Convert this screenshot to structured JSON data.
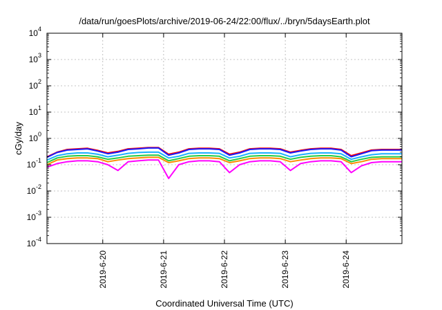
{
  "chart_data": {
    "type": "line",
    "title": "/data/run/goesPlots/archive/2019-06-24/22:00/flux/../bryn/5daysEarth.plot",
    "xlabel": "Coordinated Universal Time (UTC)",
    "ylabel": "cGy/day",
    "x_range": [
      "2019-06-19T02:00",
      "2019-06-24T22:00"
    ],
    "x_ticks": [
      "2019-6-20",
      "2019-6-21",
      "2019-6-22",
      "2019-6-23",
      "2019-6-24"
    ],
    "y_scale": "log",
    "ylim": [
      0.0001,
      10000
    ],
    "y_ticks": [
      {
        "base": "10",
        "exp": "-4"
      },
      {
        "base": "10",
        "exp": "-3"
      },
      {
        "base": "10",
        "exp": "-2"
      },
      {
        "base": "10",
        "exp": "-1"
      },
      {
        "base": "10",
        "exp": "0"
      },
      {
        "base": "10",
        "exp": "1"
      },
      {
        "base": "10",
        "exp": "2"
      },
      {
        "base": "10",
        "exp": "3"
      },
      {
        "base": "10",
        "exp": "4"
      }
    ],
    "grid": true,
    "x": [
      "2019-06-19T02:00",
      "2019-06-19T06:00",
      "2019-06-19T10:00",
      "2019-06-19T14:00",
      "2019-06-19T18:00",
      "2019-06-19T22:00",
      "2019-06-20T02:00",
      "2019-06-20T06:00",
      "2019-06-20T10:00",
      "2019-06-20T14:00",
      "2019-06-20T18:00",
      "2019-06-20T22:00",
      "2019-06-21T02:00",
      "2019-06-21T06:00",
      "2019-06-21T10:00",
      "2019-06-21T14:00",
      "2019-06-21T18:00",
      "2019-06-21T22:00",
      "2019-06-22T02:00",
      "2019-06-22T06:00",
      "2019-06-22T10:00",
      "2019-06-22T14:00",
      "2019-06-22T18:00",
      "2019-06-22T22:00",
      "2019-06-23T02:00",
      "2019-06-23T06:00",
      "2019-06-23T10:00",
      "2019-06-23T14:00",
      "2019-06-23T18:00",
      "2019-06-23T22:00",
      "2019-06-24T02:00",
      "2019-06-24T06:00",
      "2019-06-24T10:00",
      "2019-06-24T14:00",
      "2019-06-24T18:00",
      "2019-06-24T22:00"
    ],
    "series": [
      {
        "color": "#ff0000",
        "values": [
          0.2,
          0.3,
          0.38,
          0.4,
          0.42,
          0.35,
          0.28,
          0.32,
          0.4,
          0.42,
          0.45,
          0.45,
          0.25,
          0.3,
          0.4,
          0.42,
          0.42,
          0.4,
          0.25,
          0.3,
          0.4,
          0.42,
          0.42,
          0.4,
          0.3,
          0.35,
          0.4,
          0.42,
          0.42,
          0.38,
          0.22,
          0.28,
          0.36,
          0.38,
          0.38,
          0.38
        ]
      },
      {
        "color": "#1a1aff",
        "values": [
          0.19,
          0.29,
          0.36,
          0.38,
          0.4,
          0.33,
          0.26,
          0.3,
          0.38,
          0.4,
          0.43,
          0.43,
          0.23,
          0.28,
          0.38,
          0.4,
          0.4,
          0.38,
          0.23,
          0.28,
          0.38,
          0.4,
          0.4,
          0.38,
          0.28,
          0.33,
          0.38,
          0.4,
          0.4,
          0.36,
          0.2,
          0.26,
          0.34,
          0.36,
          0.36,
          0.36
        ]
      },
      {
        "color": "#1ab0ff",
        "values": [
          0.15,
          0.22,
          0.26,
          0.28,
          0.28,
          0.25,
          0.2,
          0.23,
          0.27,
          0.29,
          0.3,
          0.3,
          0.18,
          0.21,
          0.27,
          0.28,
          0.28,
          0.27,
          0.18,
          0.21,
          0.27,
          0.28,
          0.28,
          0.27,
          0.2,
          0.24,
          0.27,
          0.28,
          0.28,
          0.26,
          0.16,
          0.2,
          0.24,
          0.26,
          0.26,
          0.26
        ]
      },
      {
        "color": "#22cc44",
        "values": [
          0.12,
          0.18,
          0.21,
          0.22,
          0.22,
          0.2,
          0.16,
          0.18,
          0.21,
          0.22,
          0.23,
          0.23,
          0.14,
          0.17,
          0.21,
          0.22,
          0.22,
          0.21,
          0.14,
          0.17,
          0.21,
          0.22,
          0.22,
          0.21,
          0.16,
          0.19,
          0.21,
          0.22,
          0.22,
          0.2,
          0.13,
          0.16,
          0.19,
          0.2,
          0.2,
          0.2
        ]
      },
      {
        "color": "#ff8c00",
        "values": [
          0.1,
          0.15,
          0.17,
          0.18,
          0.18,
          0.17,
          0.13,
          0.15,
          0.17,
          0.18,
          0.19,
          0.19,
          0.12,
          0.14,
          0.17,
          0.18,
          0.18,
          0.17,
          0.12,
          0.14,
          0.17,
          0.18,
          0.18,
          0.17,
          0.13,
          0.15,
          0.17,
          0.18,
          0.18,
          0.17,
          0.11,
          0.13,
          0.16,
          0.17,
          0.17,
          0.17
        ]
      },
      {
        "color": "#ff00ff",
        "values": [
          0.08,
          0.11,
          0.13,
          0.14,
          0.14,
          0.13,
          0.1,
          0.06,
          0.13,
          0.14,
          0.15,
          0.15,
          0.03,
          0.1,
          0.13,
          0.14,
          0.14,
          0.13,
          0.05,
          0.1,
          0.13,
          0.14,
          0.14,
          0.13,
          0.06,
          0.11,
          0.13,
          0.14,
          0.14,
          0.13,
          0.05,
          0.09,
          0.12,
          0.13,
          0.13,
          0.13
        ]
      }
    ]
  }
}
